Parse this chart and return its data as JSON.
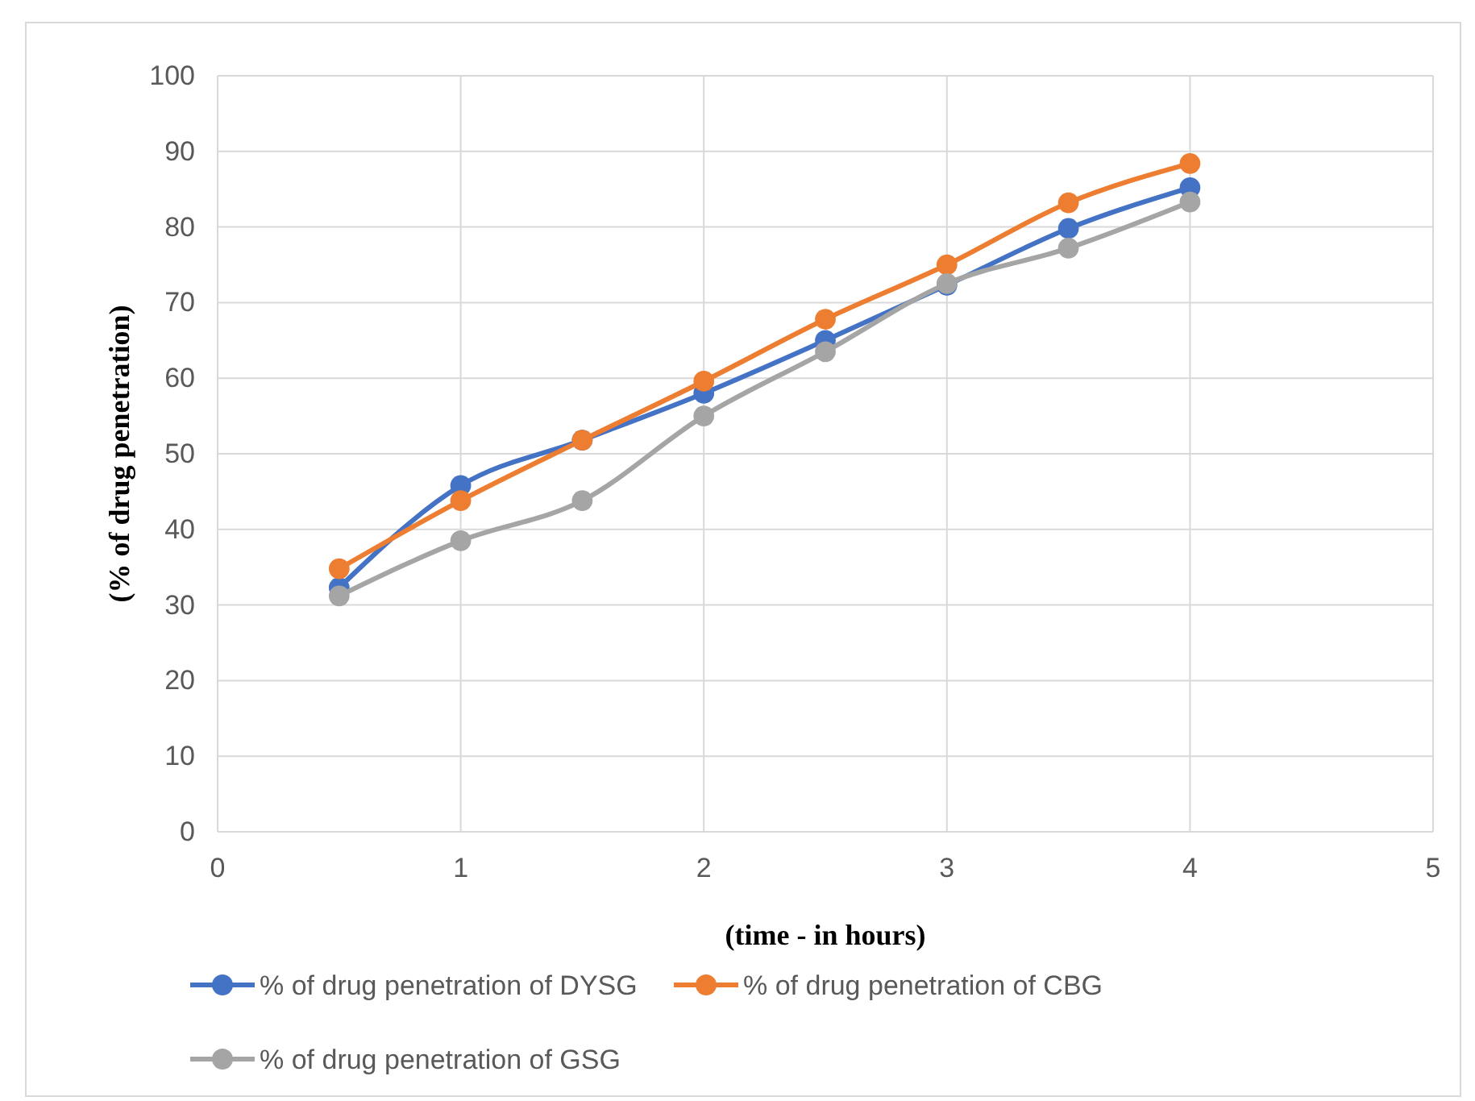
{
  "chart_data": {
    "type": "line",
    "xlabel": "(time - in hours)",
    "ylabel": "(% of drug penetration)",
    "x": [
      0.5,
      1,
      1.5,
      2,
      2.5,
      3,
      3.5,
      4
    ],
    "series": [
      {
        "name": "% of drug penetration of DYSG",
        "color": "#4472c4",
        "values": [
          32.3,
          45.8,
          51.8,
          58,
          65,
          72.3,
          79.8,
          85.2
        ]
      },
      {
        "name": "% of drug penetration of CBG",
        "color": "#ed7d31",
        "values": [
          34.8,
          43.8,
          51.8,
          59.6,
          67.8,
          75,
          83.2,
          88.4
        ]
      },
      {
        "name": "% of drug penetration of GSG",
        "color": "#a5a5a5",
        "values": [
          31.2,
          38.5,
          43.8,
          55,
          63.5,
          72.5,
          77.2,
          83.3
        ]
      }
    ],
    "xlim": [
      0,
      5
    ],
    "xticks": [
      0,
      1,
      2,
      3,
      4,
      5
    ],
    "ylim": [
      0,
      100
    ],
    "yticks": [
      0,
      10,
      20,
      30,
      40,
      50,
      60,
      70,
      80,
      90,
      100
    ],
    "grid": true,
    "legend": "bottom",
    "marker": "circle",
    "line_style": "solid"
  }
}
